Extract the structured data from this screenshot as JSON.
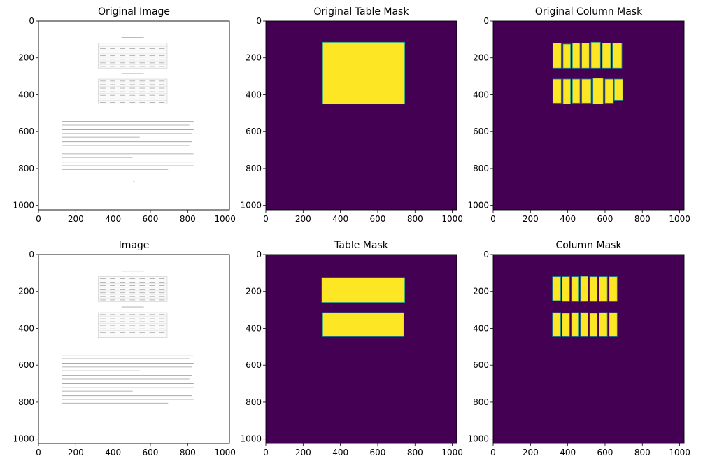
{
  "figure": {
    "panels": [
      {
        "id": "orig_image",
        "title": "Original Image",
        "kind": "document"
      },
      {
        "id": "orig_table_mask",
        "title": "Original Table Mask",
        "kind": "mask"
      },
      {
        "id": "orig_col_mask",
        "title": "Original Column Mask",
        "kind": "mask"
      },
      {
        "id": "image",
        "title": "Image",
        "kind": "document"
      },
      {
        "id": "table_mask",
        "title": "Table Mask",
        "kind": "mask"
      },
      {
        "id": "col_mask",
        "title": "Column Mask",
        "kind": "mask"
      }
    ]
  },
  "chart_data": {
    "type": "heatmap",
    "grid": "2x3",
    "xticks": [
      0,
      200,
      400,
      600,
      800,
      1000
    ],
    "yticks": [
      0,
      200,
      400,
      600,
      800,
      1000
    ],
    "xlim": [
      0,
      1024
    ],
    "ylim": [
      1024,
      0
    ],
    "colors": {
      "background": "#440154",
      "foreground": "#fde725",
      "edge": "#21918c",
      "paper": "#ffffff"
    },
    "masks": {
      "orig_table_mask": [
        {
          "x0": 305,
          "y0": 115,
          "x1": 745,
          "y1": 450
        }
      ],
      "orig_col_mask": [
        {
          "x0": 320,
          "y0": 120,
          "x1": 365,
          "y1": 255
        },
        {
          "x0": 375,
          "y0": 125,
          "x1": 415,
          "y1": 255
        },
        {
          "x0": 425,
          "y0": 120,
          "x1": 465,
          "y1": 255
        },
        {
          "x0": 475,
          "y0": 120,
          "x1": 515,
          "y1": 255
        },
        {
          "x0": 525,
          "y0": 115,
          "x1": 575,
          "y1": 255
        },
        {
          "x0": 585,
          "y0": 120,
          "x1": 630,
          "y1": 255
        },
        {
          "x0": 640,
          "y0": 120,
          "x1": 690,
          "y1": 255
        },
        {
          "x0": 320,
          "y0": 315,
          "x1": 365,
          "y1": 445
        },
        {
          "x0": 375,
          "y0": 315,
          "x1": 415,
          "y1": 450
        },
        {
          "x0": 425,
          "y0": 315,
          "x1": 465,
          "y1": 445
        },
        {
          "x0": 475,
          "y0": 315,
          "x1": 525,
          "y1": 445
        },
        {
          "x0": 535,
          "y0": 310,
          "x1": 590,
          "y1": 450
        },
        {
          "x0": 600,
          "y0": 315,
          "x1": 645,
          "y1": 445
        },
        {
          "x0": 650,
          "y0": 315,
          "x1": 695,
          "y1": 430
        }
      ],
      "table_mask": [
        {
          "x0": 300,
          "y0": 125,
          "x1": 745,
          "y1": 260
        },
        {
          "x0": 305,
          "y0": 315,
          "x1": 740,
          "y1": 445
        }
      ],
      "col_mask": [
        {
          "x0": 318,
          "y0": 120,
          "x1": 362,
          "y1": 250
        },
        {
          "x0": 370,
          "y0": 120,
          "x1": 410,
          "y1": 255
        },
        {
          "x0": 420,
          "y0": 120,
          "x1": 460,
          "y1": 255
        },
        {
          "x0": 468,
          "y0": 118,
          "x1": 508,
          "y1": 255
        },
        {
          "x0": 518,
          "y0": 120,
          "x1": 558,
          "y1": 255
        },
        {
          "x0": 568,
          "y0": 120,
          "x1": 612,
          "y1": 255
        },
        {
          "x0": 622,
          "y0": 120,
          "x1": 665,
          "y1": 255
        },
        {
          "x0": 318,
          "y0": 315,
          "x1": 362,
          "y1": 445
        },
        {
          "x0": 370,
          "y0": 318,
          "x1": 410,
          "y1": 445
        },
        {
          "x0": 420,
          "y0": 315,
          "x1": 460,
          "y1": 445
        },
        {
          "x0": 468,
          "y0": 315,
          "x1": 508,
          "y1": 445
        },
        {
          "x0": 518,
          "y0": 318,
          "x1": 558,
          "y1": 445
        },
        {
          "x0": 568,
          "y0": 315,
          "x1": 612,
          "y1": 445
        },
        {
          "x0": 622,
          "y0": 315,
          "x1": 665,
          "y1": 445
        }
      ]
    }
  }
}
